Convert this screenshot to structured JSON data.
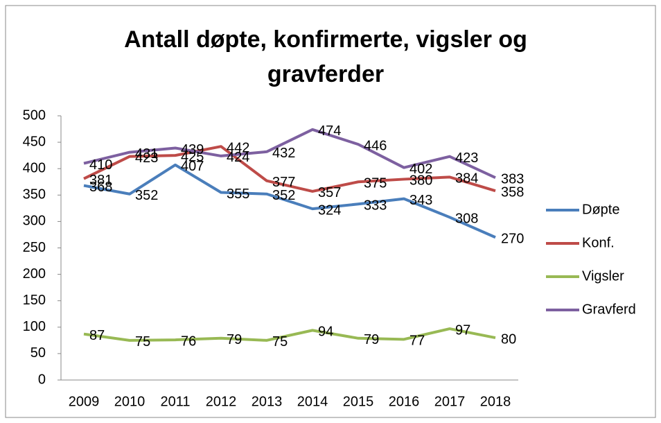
{
  "chart_data": {
    "type": "line",
    "title": "Antall døpte, konfirmerte, vigsler og gravferder",
    "categories": [
      "2009",
      "2010",
      "2011",
      "2012",
      "2013",
      "2014",
      "2015",
      "2016",
      "2017",
      "2018"
    ],
    "series": [
      {
        "name": "Døpte",
        "color": "#4a7ebb",
        "values": [
          368,
          352,
          407,
          355,
          352,
          324,
          333,
          343,
          308,
          270
        ]
      },
      {
        "name": "Konf.",
        "color": "#be4b48",
        "values": [
          381,
          423,
          425,
          442,
          377,
          357,
          375,
          380,
          384,
          358
        ]
      },
      {
        "name": "Vigsler",
        "color": "#98b954",
        "values": [
          87,
          75,
          76,
          79,
          75,
          94,
          79,
          77,
          97,
          80
        ]
      },
      {
        "name": "Gravferd",
        "color": "#7d60a0",
        "values": [
          410,
          431,
          439,
          424,
          432,
          474,
          446,
          402,
          423,
          383
        ]
      }
    ],
    "ylim": [
      0,
      500
    ],
    "yticks": [
      0,
      50,
      100,
      150,
      200,
      250,
      300,
      350,
      400,
      450,
      500
    ],
    "legend": "right"
  }
}
